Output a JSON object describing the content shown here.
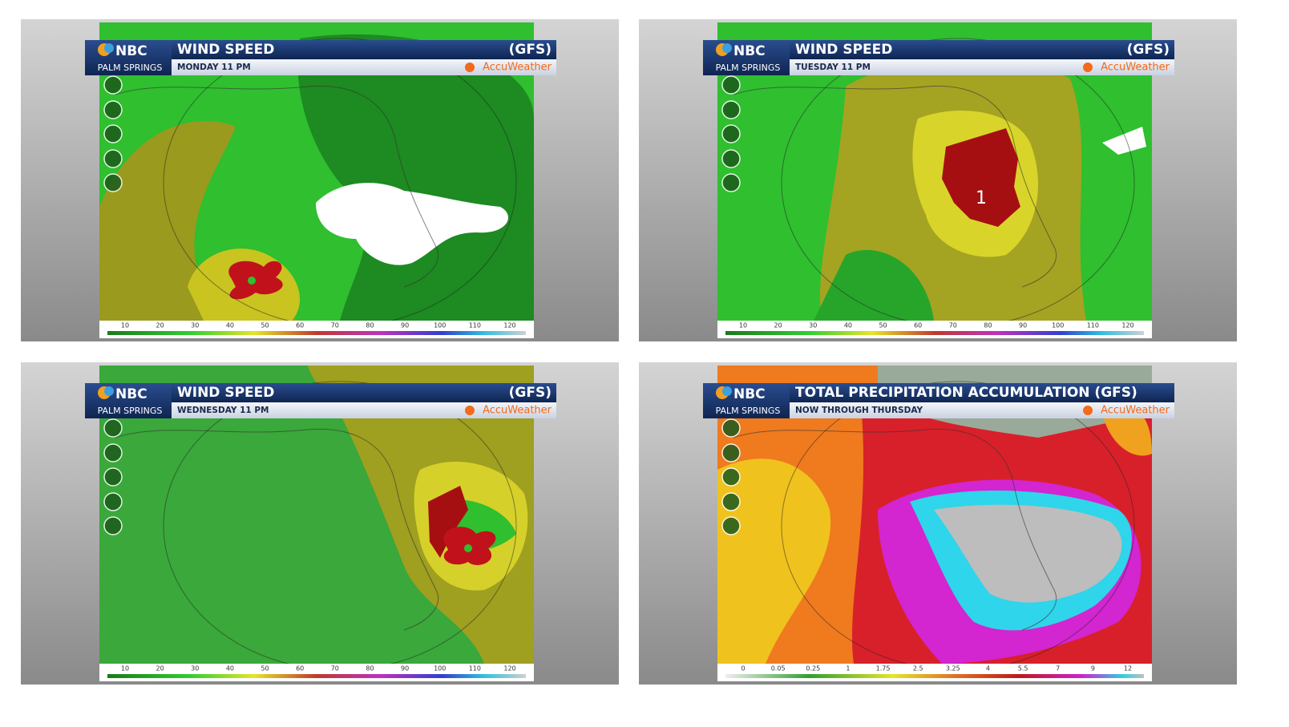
{
  "brand": "NBC",
  "station": "PALM SPRINGS",
  "provider": "AccuWeather",
  "panels": [
    {
      "title": "WIND SPEED",
      "model": "(GFS)",
      "subtitle": "MONDAY 11 PM",
      "legend_labels": [
        10,
        20,
        30,
        40,
        50,
        60,
        70,
        80,
        90,
        100,
        110,
        120
      ]
    },
    {
      "title": "WIND SPEED",
      "model": "(GFS)",
      "subtitle": "TUESDAY 11 PM",
      "legend_labels": [
        10,
        20,
        30,
        40,
        50,
        60,
        70,
        80,
        90,
        100,
        110,
        120
      ],
      "storm_label": "1"
    },
    {
      "title": "WIND SPEED",
      "model": "(GFS)",
      "subtitle": "WEDNESDAY 11 PM",
      "legend_labels": [
        10,
        20,
        30,
        40,
        50,
        60,
        70,
        80,
        90,
        100,
        110,
        120
      ]
    },
    {
      "title": "TOTAL PRECIPITATION ACCUMULATION (GFS)",
      "subtitle": "NOW THROUGH THURSDAY",
      "legend_labels": [
        0,
        0.05,
        0.25,
        1,
        1.75,
        2.5,
        3.25,
        4,
        5.5,
        7,
        9,
        12
      ]
    }
  ]
}
